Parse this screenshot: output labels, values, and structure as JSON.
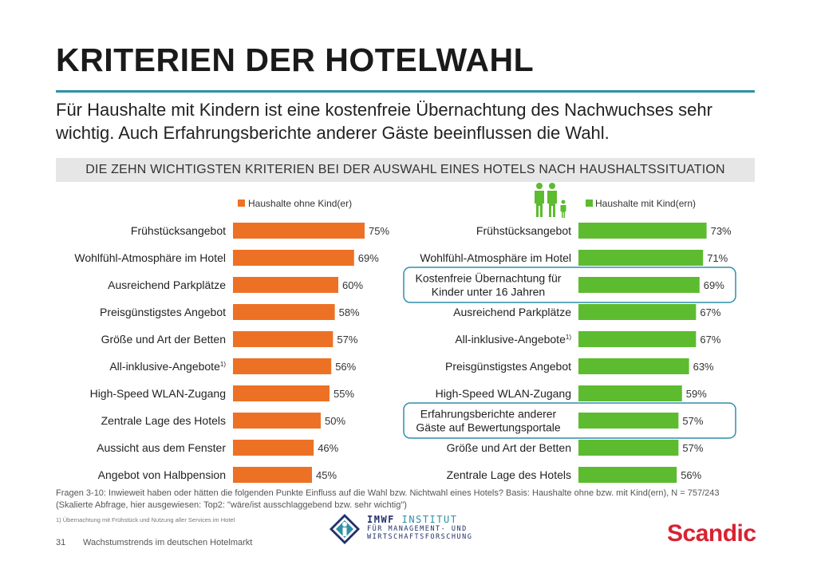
{
  "header": {
    "title": "KRITERIEN DER HOTELWAHL",
    "subtitle": "Für Haushalte mit Kindern ist eine kostenfreie Übernachtung des Nachwuchses sehr wichtig. Auch Erfahrungsberichte anderer Gäste beeinflussen die Wahl.",
    "section_label": "DIE ZEHN WICHTIGSTEN KRITERIEN BEI DER AUSWAHL EINES HOTELS NACH HAUSHALTSSITUATION"
  },
  "colors": {
    "accent": "#2f8fa8",
    "orange": "#ed7125",
    "green": "#5dbb2f",
    "scandic_red": "#d92231"
  },
  "chart_data": [
    {
      "type": "bar",
      "orientation": "horizontal",
      "series_name": "Haushalte ohne Kind(er)",
      "color": "#ed7125",
      "unit": "%",
      "xlim": [
        0,
        100
      ],
      "categories": [
        "Frühstücksangebot",
        "Wohlfühl-Atmosphäre im Hotel",
        "Ausreichend Parkplätze",
        "Preisgünstigstes Angebot",
        "Größe und Art der Betten",
        "All-inklusive-Angebote",
        "High-Speed WLAN-Zugang",
        "Zentrale Lage des Hotels",
        "Aussicht aus dem Fenster",
        "Angebot von Halbpension"
      ],
      "superscripts": [
        "",
        "",
        "",
        "",
        "",
        "1)",
        "",
        "",
        "",
        ""
      ],
      "values": [
        75,
        69,
        60,
        58,
        57,
        56,
        55,
        50,
        46,
        45
      ],
      "value_labels": [
        "75%",
        "69%",
        "60%",
        "58%",
        "57%",
        "56%",
        "55%",
        "50%",
        "46%",
        "45%"
      ]
    },
    {
      "type": "bar",
      "orientation": "horizontal",
      "series_name": "Haushalte mit Kind(ern)",
      "color": "#5dbb2f",
      "unit": "%",
      "xlim": [
        0,
        100
      ],
      "categories": [
        "Frühstücksangebot",
        "Wohlfühl-Atmosphäre im Hotel",
        "Kostenfreie Übernachtung für Kinder unter 16 Jahren",
        "Ausreichend Parkplätze",
        "All-inklusive-Angebote",
        "Preisgünstigstes Angebot",
        "High-Speed WLAN-Zugang",
        "Erfahrungsberichte anderer Gäste auf Bewertungsportale",
        "Größe und Art der Betten",
        "Zentrale Lage des Hotels"
      ],
      "category_lines": [
        [
          "Frühstücksangebot"
        ],
        [
          "Wohlfühl-Atmosphäre im Hotel"
        ],
        [
          "Kostenfreie Übernachtung für",
          "Kinder unter 16 Jahren"
        ],
        [
          "Ausreichend Parkplätze"
        ],
        [
          "All-inklusive-Angebote"
        ],
        [
          "Preisgünstigstes Angebot"
        ],
        [
          "High-Speed WLAN-Zugang"
        ],
        [
          "Erfahrungsberichte anderer",
          "Gäste auf Bewertungsportale"
        ],
        [
          "Größe und Art der Betten"
        ],
        [
          "Zentrale Lage des Hotels"
        ]
      ],
      "superscripts": [
        "",
        "",
        "",
        "",
        "1)",
        "",
        "",
        "",
        "",
        ""
      ],
      "highlighted": [
        false,
        false,
        true,
        false,
        false,
        false,
        false,
        true,
        false,
        false
      ],
      "values": [
        73,
        71,
        69,
        67,
        67,
        63,
        59,
        57,
        57,
        56
      ],
      "value_labels": [
        "73%",
        "71%",
        "69%",
        "67%",
        "67%",
        "63%",
        "59%",
        "57%",
        "57%",
        "56%"
      ]
    }
  ],
  "footer": {
    "question_note": "Fragen 3-10: Inwieweit haben oder hätten die folgenden Punkte Einfluss auf die Wahl bzw. Nichtwahl eines Hotels? Basis: Haushalte ohne bzw. mit Kind(ern), N = 757/243 (Skalierte Abfrage, hier ausgewiesen: Top2: \"wäre/ist ausschlaggebend bzw. sehr wichtig\")",
    "footnote": "1) Übernachtung mit Frühstück und Nutzung aller Services im Hotel",
    "page_number": "31",
    "page_caption": "Wachstumstrends im deutschen Hotelmarkt",
    "imwf_brand": "IMWF",
    "imwf_line1_suffix": "INSTITUT",
    "imwf_line2": "FÜR MANAGEMENT- UND",
    "imwf_line3": "WIRTSCHAFTSFORSCHUNG",
    "scandic_logo": "Scandic",
    "family_icon": "family-icon"
  }
}
